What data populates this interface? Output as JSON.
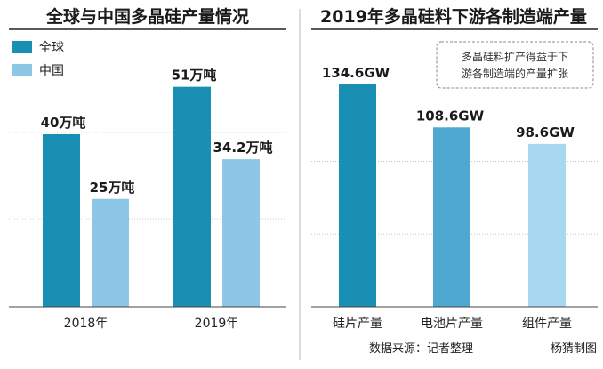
{
  "colors": {
    "global": "#1a8fb4",
    "china": "#8cc8e6",
    "wafer": "#1a8fb4",
    "cell": "#4ea8d1",
    "module": "#a7d7f1"
  },
  "chart_data": [
    {
      "type": "bar",
      "title": "全球与中国多晶硅产量情况",
      "categories": [
        "2018年",
        "2019年"
      ],
      "series": [
        {
          "name": "全球",
          "values": [
            40,
            51
          ],
          "labels": [
            "40万吨",
            "51万吨"
          ]
        },
        {
          "name": "中国",
          "values": [
            25,
            34.2
          ],
          "labels": [
            "25万吨",
            "34.2万吨"
          ]
        }
      ],
      "ylim": [
        0,
        60
      ],
      "grid": true,
      "legend": "top-left"
    },
    {
      "type": "bar",
      "title": "2019年多晶硅料下游各制造端产量",
      "categories": [
        "硅片产量",
        "电池片产量",
        "组件产量"
      ],
      "values": [
        134.6,
        108.6,
        98.6
      ],
      "labels": [
        "134.6GW",
        "108.6GW",
        "98.6GW"
      ],
      "ylim": [
        0,
        160
      ],
      "grid": true,
      "annotation": "多晶硅料扩产得益于下游各制造端的产量扩张"
    }
  ],
  "note_lines": [
    "多晶硅料扩产得益于下",
    "游各制造端的产量扩张"
  ],
  "footer": {
    "source": "数据来源：记者整理",
    "author": "杨猜制图"
  }
}
